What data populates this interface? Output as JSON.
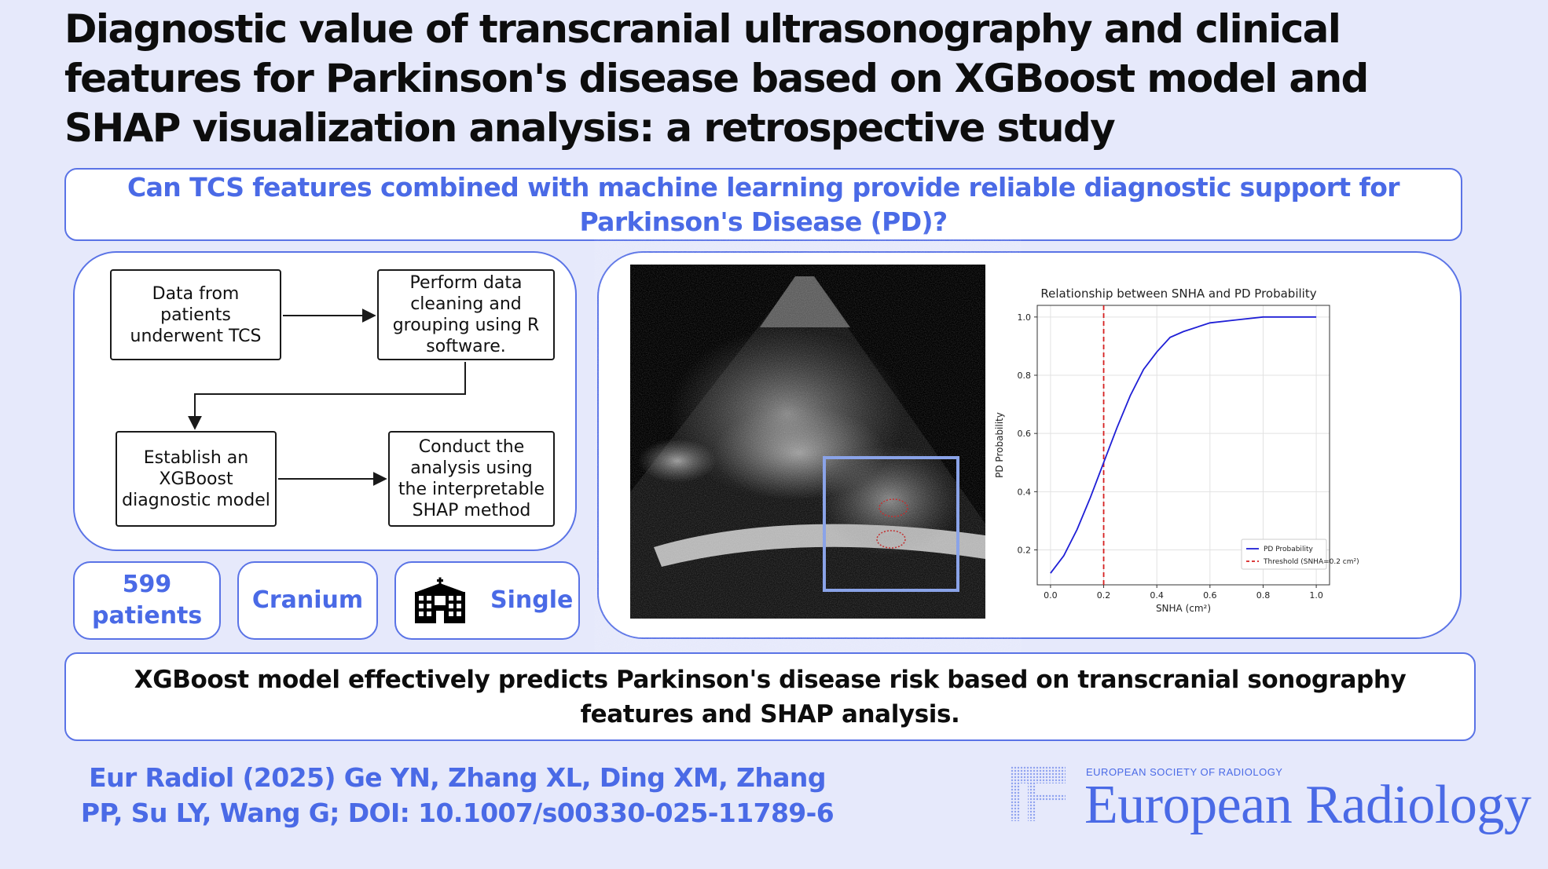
{
  "title": "Diagnostic value of transcranial ultrasonography and clinical features for Parkinson's disease based on XGBoost model and SHAP visualization analysis: a retrospective study",
  "question": "Can TCS features combined with machine learning provide reliable diagnostic support for Parkinson's Disease (PD)?",
  "flowchart": {
    "step1": "Data from patients underwent TCS",
    "step2": "Perform data cleaning and grouping using R software.",
    "step3": "Establish an XGBoost diagnostic model",
    "step4": "Conduct the analysis using the interpretable SHAP method"
  },
  "stats": {
    "patients": "599 patients",
    "region": "Cranium",
    "center": "Single",
    "center_icon": "hospital-icon"
  },
  "chart_data": {
    "type": "line",
    "title": "Relationship between SNHA and PD Probability",
    "xlabel": "SNHA (cm²)",
    "ylabel": "PD Probability",
    "xlim": [
      -0.05,
      1.05
    ],
    "ylim": [
      0.08,
      1.04
    ],
    "x_ticks": [
      "0.0",
      "0.2",
      "0.4",
      "0.6",
      "0.8",
      "1.0"
    ],
    "y_ticks": [
      "0.2",
      "0.4",
      "0.6",
      "0.8",
      "1.0"
    ],
    "grid": true,
    "legend_position": "bottom-right",
    "series": [
      {
        "name": "PD Probability",
        "color": "#1f1fd6",
        "x": [
          0.0,
          0.05,
          0.1,
          0.15,
          0.2,
          0.25,
          0.3,
          0.35,
          0.4,
          0.45,
          0.5,
          0.6,
          0.7,
          0.8,
          0.9,
          1.0
        ],
        "y": [
          0.12,
          0.18,
          0.27,
          0.38,
          0.5,
          0.62,
          0.73,
          0.82,
          0.88,
          0.93,
          0.95,
          0.98,
          0.99,
          1.0,
          1.0,
          1.0
        ]
      }
    ],
    "threshold": {
      "name": "Threshold (SNHA=0.2 cm²)",
      "x": 0.2,
      "color": "#d62020"
    }
  },
  "conclusion": "XGBoost model effectively predicts Parkinson's disease risk based on transcranial sonography features and SHAP analysis.",
  "citation": "Eur Radiol (2025) Ge YN, Zhang XL, Ding XM, Zhang PP, Su LY, Wang G; DOI: 10.1007/s00330-025-11789-6",
  "journal": {
    "org": "EUROPEAN SOCIETY OF RADIOLOGY",
    "name": "European Radiology"
  },
  "colors": {
    "accent": "#4a6ae6",
    "background": "#e6e9fb"
  }
}
